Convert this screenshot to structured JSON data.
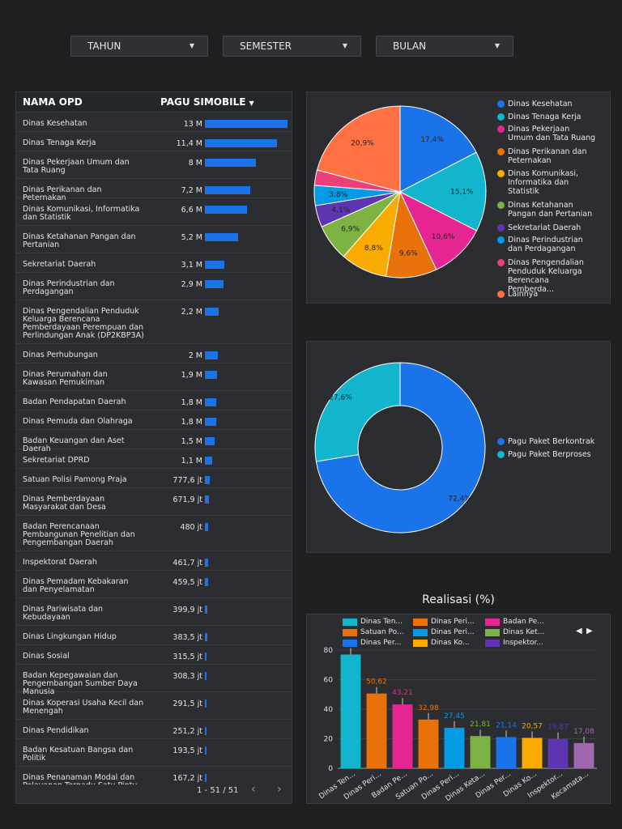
{
  "filters": [
    {
      "label": "TAHUN"
    },
    {
      "label": "SEMESTER"
    },
    {
      "label": "BULAN"
    }
  ],
  "table": {
    "col1": "NAMA OPD",
    "col2": "PAGU SIMOBILE",
    "rows": [
      {
        "name": "Dinas Kesehatan",
        "value": "13 M",
        "amount": 13000
      },
      {
        "name": "Dinas Tenaga Kerja",
        "value": "11,4 M",
        "amount": 11400
      },
      {
        "name": "Dinas Pekerjaan Umum dan Tata Ruang",
        "value": "8 M",
        "amount": 8000
      },
      {
        "name": "Dinas Perikanan dan Peternakan",
        "value": "7,2 M",
        "amount": 7200
      },
      {
        "name": "Dinas Komunikasi, Informatika dan Statistik",
        "value": "6,6 M",
        "amount": 6600
      },
      {
        "name": "Dinas Ketahanan Pangan dan Pertanian",
        "value": "5,2 M",
        "amount": 5200
      },
      {
        "name": "Sekretariat Daerah",
        "value": "3,1 M",
        "amount": 3100
      },
      {
        "name": "Dinas Perindustrian dan Perdagangan",
        "value": "2,9 M",
        "amount": 2900
      },
      {
        "name": "Dinas Pengendalian Penduduk Keluarga Berencana Pemberdayaan Perempuan dan Perlindungan Anak (DP2KBP3A)",
        "value": "2,2 M",
        "amount": 2200
      },
      {
        "name": "Dinas Perhubungan",
        "value": "2 M",
        "amount": 2000
      },
      {
        "name": "Dinas Perumahan dan Kawasan Pemukiman",
        "value": "1,9 M",
        "amount": 1900
      },
      {
        "name": "Badan Pendapatan Daerah",
        "value": "1,8 M",
        "amount": 1800
      },
      {
        "name": "Dinas Pemuda dan Olahraga",
        "value": "1,8 M",
        "amount": 1800
      },
      {
        "name": "Badan Keuangan dan Aset Daerah",
        "value": "1,5 M",
        "amount": 1500
      },
      {
        "name": "Sekretariat DPRD",
        "value": "1,1 M",
        "amount": 1100
      },
      {
        "name": "Satuan Polisi Pamong Praja",
        "value": "777,6 jt",
        "amount": 777.6
      },
      {
        "name": "Dinas Pemberdayaan Masyarakat dan Desa",
        "value": "671,9 jt",
        "amount": 671.9
      },
      {
        "name": "Badan Perencanaan Pembangunan Penelitian dan Pengembangan Daerah",
        "value": "480 jt",
        "amount": 480
      },
      {
        "name": "Inspektorat Daerah",
        "value": "461,7 jt",
        "amount": 461.7
      },
      {
        "name": "Dinas Pemadam Kebakaran dan Penyelamatan",
        "value": "459,5 jt",
        "amount": 459.5
      },
      {
        "name": "Dinas Pariwisata dan Kebudayaan",
        "value": "399,9 jt",
        "amount": 399.9
      },
      {
        "name": "Dinas Lingkungan Hidup",
        "value": "383,5 jt",
        "amount": 383.5
      },
      {
        "name": "Dinas Sosial",
        "value": "315,5 jt",
        "amount": 315.5
      },
      {
        "name": "Badan Kepegawaian dan Pengembangan Sumber Daya Manusia",
        "value": "308,3 jt",
        "amount": 308.3
      },
      {
        "name": "Dinas Koperasi Usaha Kecil dan Menengah",
        "value": "291,5 jt",
        "amount": 291.5
      },
      {
        "name": "Dinas Pendidikan",
        "value": "251,2 jt",
        "amount": 251.2
      },
      {
        "name": "Badan Kesatuan Bangsa dan Politik",
        "value": "193,5 jt",
        "amount": 193.5
      },
      {
        "name": "Dinas Penanaman Modal dan Pelayanan Terpadu Satu Pintu",
        "value": "167,2 jt",
        "amount": 167.2
      }
    ],
    "pagination": "1 - 51 / 51",
    "prev_icon": "‹",
    "next_icon": "›"
  },
  "chart_data": [
    {
      "type": "pie",
      "title": "",
      "labels": [
        "Dinas Kesehatan",
        "Dinas Tenaga Kerja",
        "Dinas Pekerjaan Umum dan Tata Ruang",
        "Dinas Perikanan dan Peternakan",
        "Dinas Komunikasi, Informatika dan Statistik",
        "Dinas Ketahanan Pangan dan Pertanian",
        "Sekretariat Daerah",
        "Dinas Perindustrian dan Perdagangan",
        "Dinas Pengendalian Penduduk Keluarga Berencana Pemberda...",
        "Lainnya"
      ],
      "values": [
        17.4,
        15.1,
        10.6,
        9.6,
        8.8,
        6.9,
        4.1,
        3.8,
        2.9,
        20.9
      ],
      "value_labels": [
        "17,4%",
        "15,1%",
        "10,6%",
        "9,6%",
        "8,8%",
        "6,9%",
        "4,1%",
        "3,8%",
        "",
        "20,9%"
      ],
      "colors": [
        "#1a73e8",
        "#12b5cb",
        "#e52592",
        "#e8710a",
        "#f9ab00",
        "#7cb342",
        "#5e35b1",
        "#039be5",
        "#ec407a",
        "#ff7043"
      ]
    },
    {
      "type": "donut",
      "title": "",
      "labels": [
        "Pagu Paket Berkontrak",
        "Pagu Paket Berproses"
      ],
      "values": [
        72.4,
        27.6
      ],
      "value_labels": [
        "72,4%",
        "27,6%"
      ],
      "colors": [
        "#1a73e8",
        "#12b5cb"
      ]
    },
    {
      "type": "bar",
      "title": "Realisasi (%)",
      "ylim": [
        0,
        80
      ],
      "yticks": [
        0,
        20,
        40,
        60,
        80
      ],
      "categories": [
        "Dinas Ten...",
        "Dinas Peri...",
        "Badan Pe...",
        "Satuan Po...",
        "Dinas Peri...",
        "Dinas Keta...",
        "Dinas Per...",
        "Dinas Ko...",
        "Inspektor...",
        "Kecamata..."
      ],
      "legend": [
        "Dinas Ten...",
        "Dinas Peri...",
        "Badan Pe...",
        "Satuan Po...",
        "Dinas Peri...",
        "Dinas Ket...",
        "Dinas Per...",
        "Dinas Ko...",
        "Inspektor..."
      ],
      "values": [
        77,
        50.62,
        43.21,
        32.98,
        27.45,
        21.81,
        21.14,
        20.57,
        19.87,
        17.08
      ],
      "value_labels": [
        "",
        "50,62",
        "43,21",
        "32,98",
        "27,45",
        "21,81",
        "21,14",
        "20,57",
        "19,87",
        "17,08"
      ],
      "colors": [
        "#12b5cb",
        "#e8710a",
        "#e52592",
        "#e8710a",
        "#039be5",
        "#7cb342",
        "#1a73e8",
        "#f9ab00",
        "#5e35b1",
        "#9e69af"
      ],
      "nav_prev": "◀",
      "nav_next": "▶"
    }
  ]
}
